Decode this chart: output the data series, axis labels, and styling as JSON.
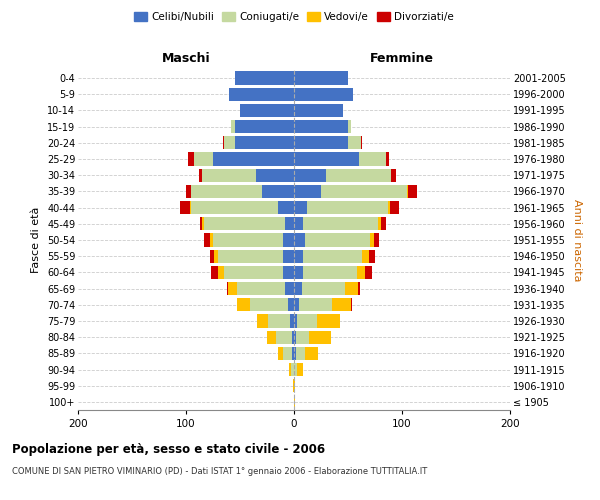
{
  "age_groups": [
    "100+",
    "95-99",
    "90-94",
    "85-89",
    "80-84",
    "75-79",
    "70-74",
    "65-69",
    "60-64",
    "55-59",
    "50-54",
    "45-49",
    "40-44",
    "35-39",
    "30-34",
    "25-29",
    "20-24",
    "15-19",
    "10-14",
    "5-9",
    "0-4"
  ],
  "birth_years": [
    "≤ 1905",
    "1906-1910",
    "1911-1915",
    "1916-1920",
    "1921-1925",
    "1926-1930",
    "1931-1935",
    "1936-1940",
    "1941-1945",
    "1946-1950",
    "1951-1955",
    "1956-1960",
    "1961-1965",
    "1966-1970",
    "1971-1975",
    "1976-1980",
    "1981-1985",
    "1986-1990",
    "1991-1995",
    "1996-2000",
    "2001-2005"
  ],
  "male_celibe": [
    0,
    0,
    0,
    2,
    2,
    4,
    6,
    8,
    10,
    10,
    10,
    8,
    15,
    30,
    35,
    75,
    55,
    55,
    50,
    60,
    55
  ],
  "male_coniugato": [
    0,
    0,
    3,
    8,
    15,
    20,
    35,
    45,
    55,
    60,
    65,
    75,
    80,
    65,
    50,
    18,
    10,
    3,
    0,
    0,
    0
  ],
  "male_vedovo": [
    0,
    1,
    2,
    5,
    8,
    10,
    12,
    8,
    5,
    4,
    3,
    2,
    1,
    0,
    0,
    0,
    0,
    0,
    0,
    0,
    0
  ],
  "male_divorziato": [
    0,
    0,
    0,
    0,
    0,
    0,
    0,
    1,
    7,
    4,
    5,
    2,
    10,
    5,
    3,
    5,
    1,
    0,
    0,
    0,
    0
  ],
  "female_celibe": [
    0,
    0,
    0,
    2,
    2,
    3,
    5,
    7,
    8,
    8,
    10,
    8,
    12,
    25,
    30,
    60,
    50,
    50,
    45,
    55,
    50
  ],
  "female_coniugata": [
    0,
    0,
    3,
    8,
    12,
    18,
    30,
    40,
    50,
    55,
    60,
    70,
    75,
    80,
    60,
    25,
    12,
    3,
    0,
    0,
    0
  ],
  "female_vedova": [
    1,
    1,
    5,
    12,
    20,
    22,
    18,
    12,
    8,
    6,
    4,
    3,
    2,
    1,
    0,
    0,
    0,
    0,
    0,
    0,
    0
  ],
  "female_divorziata": [
    0,
    0,
    0,
    0,
    0,
    0,
    1,
    2,
    6,
    6,
    5,
    4,
    8,
    8,
    4,
    3,
    1,
    0,
    0,
    0,
    0
  ],
  "colors": {
    "celibe": "#4472c4",
    "coniugato": "#c5d9a0",
    "vedovo": "#ffc000",
    "divorziato": "#cc0000"
  },
  "title": "Popolazione per età, sesso e stato civile - 2006",
  "subtitle": "COMUNE DI SAN PIETRO VIMINARIO (PD) - Dati ISTAT 1° gennaio 2006 - Elaborazione TUTTITALIA.IT",
  "xlabel_maschi": "Maschi",
  "xlabel_femmine": "Femmine",
  "ylabel_left": "Fasce di età",
  "ylabel_right": "Anni di nascita",
  "xlim": 200,
  "legend_labels": [
    "Celibi/Nubili",
    "Coniugati/e",
    "Vedovi/e",
    "Divorziati/e"
  ]
}
